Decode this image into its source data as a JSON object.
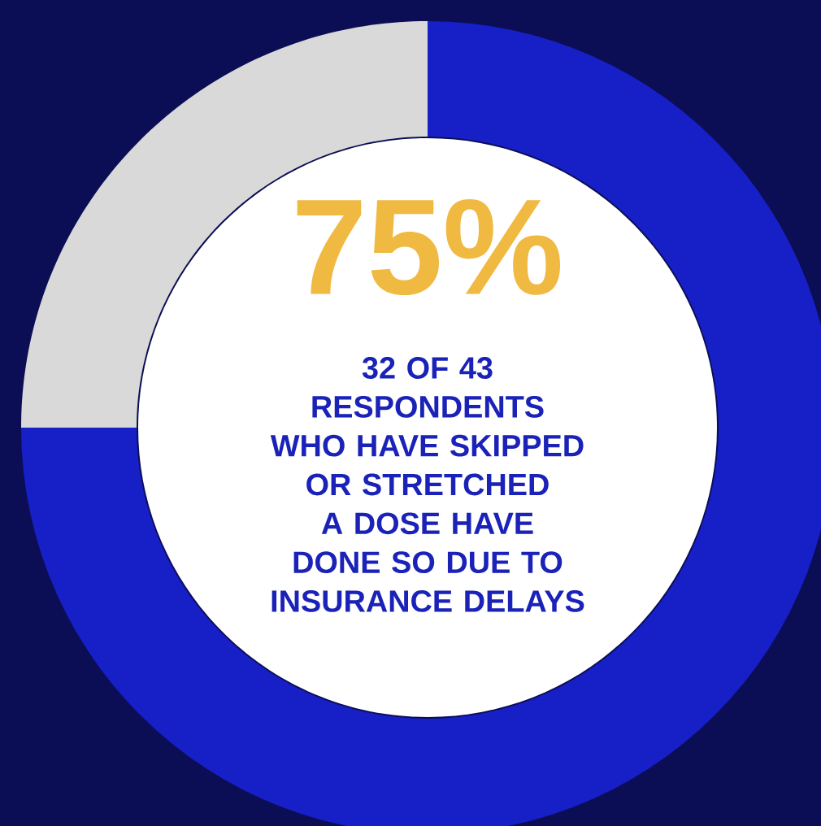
{
  "chart_data": {
    "type": "donut",
    "categories": [
      null,
      null
    ],
    "values": [
      75,
      25
    ],
    "colors": [
      "#171fc6",
      "#d9d9d9"
    ],
    "value_labels": [
      "75%",
      null
    ],
    "annotations": [
      "32 OF 43 RESPONDENTS WHO HAVE SKIPPED OR STRETCHED A DOSE HAVE DONE SO DUE TO INSURANCE DELAYS"
    ]
  }
}
